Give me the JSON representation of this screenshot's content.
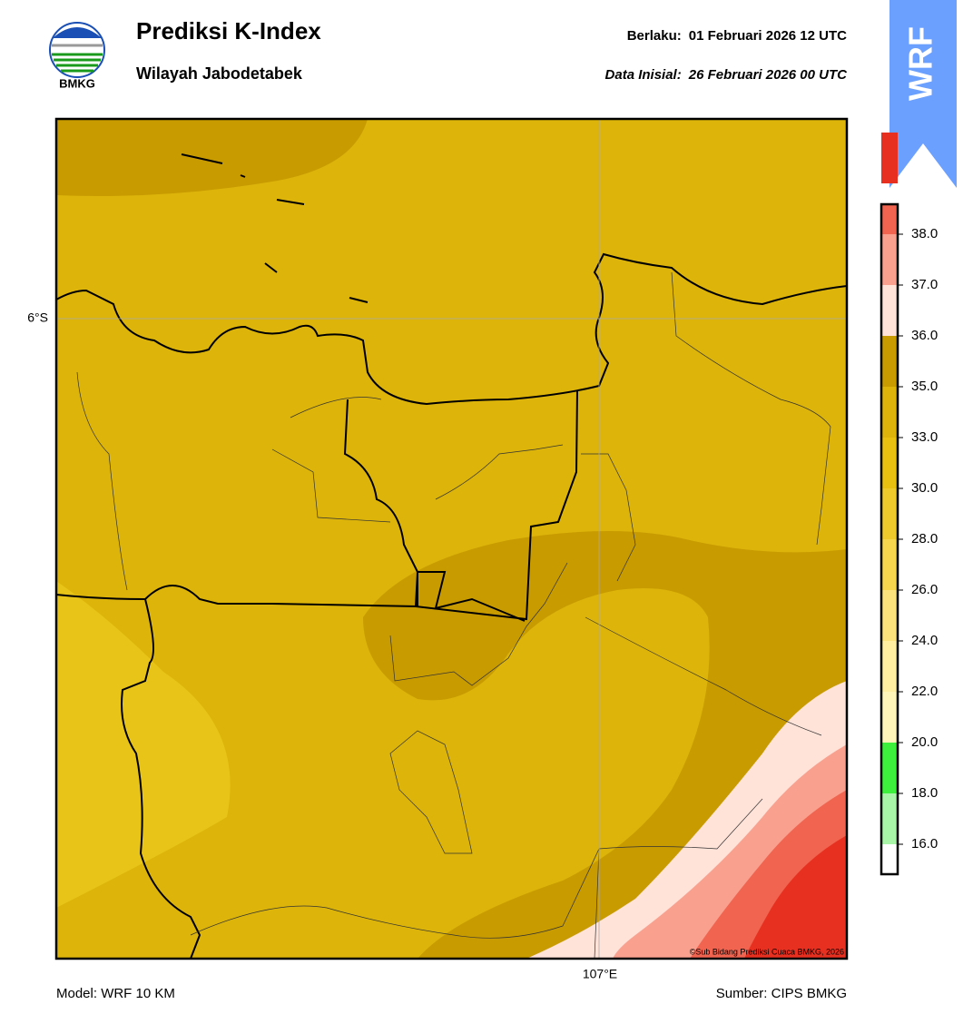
{
  "header": {
    "title": "Prediksi K-Index",
    "subtitle": "Wilayah Jabodetabek",
    "valid_label": "Berlaku:",
    "valid_time": "01 Februari 2026 12 UTC",
    "init_label": "Data Inisial:",
    "init_time": "26 Februari 2026 00 UTC",
    "logo_text": "BMKG",
    "badge": "WRF"
  },
  "map": {
    "lat_label": "6°S",
    "lon_label": "107°E",
    "credit": "©Sub Bidang Prediksi Cuaca BMKG, 2026"
  },
  "colorbar": {
    "ticks": [
      {
        "value": 16,
        "label": "16.0"
      },
      {
        "value": 18,
        "label": "18.0"
      },
      {
        "value": 20,
        "label": "20.0"
      },
      {
        "value": 22,
        "label": "22.0"
      },
      {
        "value": 24,
        "label": "24.0"
      },
      {
        "value": 26,
        "label": "26.0"
      },
      {
        "value": 28,
        "label": "28.0"
      },
      {
        "value": 30,
        "label": "30.0"
      },
      {
        "value": 33,
        "label": "33.0"
      },
      {
        "value": 35,
        "label": "35.0"
      },
      {
        "value": 36,
        "label": "36.0"
      },
      {
        "value": 37,
        "label": "37.0"
      },
      {
        "value": 38,
        "label": "38.0"
      }
    ],
    "colors": [
      "#ffffff",
      "#a8f5a8",
      "#3cf03c",
      "#fff5b8",
      "#ffeea0",
      "#fbe27a",
      "#f5d64c",
      "#eecb2a",
      "#e8c010",
      "#dcb40a",
      "#c89b00",
      "#ffe2d8",
      "#f9a08e",
      "#f06450",
      "#e83020"
    ]
  },
  "footer": {
    "model": "Model: WRF 10 KM",
    "source": "Sumber: CIPS BMKG"
  }
}
